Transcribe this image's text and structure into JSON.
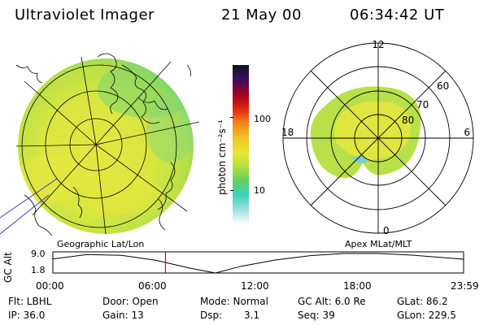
{
  "header": {
    "instrument": "Ultraviolet Imager",
    "date": "21 May 00",
    "time": "06:34:42 UT"
  },
  "colorbar": {
    "unit_label": "photon cm⁻²s⁻¹",
    "ticks": [
      "100",
      "10"
    ],
    "scale": "log",
    "colors": [
      "#101020",
      "#3a1060",
      "#9a0020",
      "#e02010",
      "#f08020",
      "#f0c020",
      "#e8e830",
      "#b0e040",
      "#60d060",
      "#40d0c0",
      "#a0e0e0",
      "#ffffff"
    ]
  },
  "polar_plot": {
    "mlt_labels": [
      "12",
      "18",
      "6",
      "0"
    ],
    "lat_labels": [
      "60",
      "70",
      "80"
    ]
  },
  "projection_labels": {
    "left": "Geographic Lat/Lon",
    "right": "Apex MLat/MLT"
  },
  "altitude_plot": {
    "ylabel": "GC Alt",
    "yticks": [
      "9.0",
      "1.8"
    ],
    "xticks": [
      "00:00",
      "06:00",
      "12:00",
      "18:00",
      "23:59"
    ],
    "marker_hour": 6.58,
    "curve": [
      {
        "hour": 0,
        "alt": 7.0
      },
      {
        "hour": 2,
        "alt": 8.6
      },
      {
        "hour": 4,
        "alt": 8.3
      },
      {
        "hour": 6,
        "alt": 6.5
      },
      {
        "hour": 8,
        "alt": 3.6
      },
      {
        "hour": 9.5,
        "alt": 1.8
      },
      {
        "hour": 11,
        "alt": 4.3
      },
      {
        "hour": 13,
        "alt": 6.6
      },
      {
        "hour": 15,
        "alt": 8.2
      },
      {
        "hour": 17,
        "alt": 9.0
      },
      {
        "hour": 19,
        "alt": 9.0
      },
      {
        "hour": 21,
        "alt": 8.4
      },
      {
        "hour": 23.98,
        "alt": 6.9
      }
    ]
  },
  "status": {
    "flt": "Flt: LBHL",
    "ip": "IP: 36.0",
    "door": "Door: Open",
    "gain": "Gain: 13",
    "mode": "Mode: Normal",
    "dsp_label": "Dsp:",
    "dsp_value": "3.1",
    "gc_alt": "GC Alt: 6.0 Re",
    "seq": "Seq: 39",
    "glat": "GLat: 86.2",
    "glon": "GLon: 229.5"
  }
}
